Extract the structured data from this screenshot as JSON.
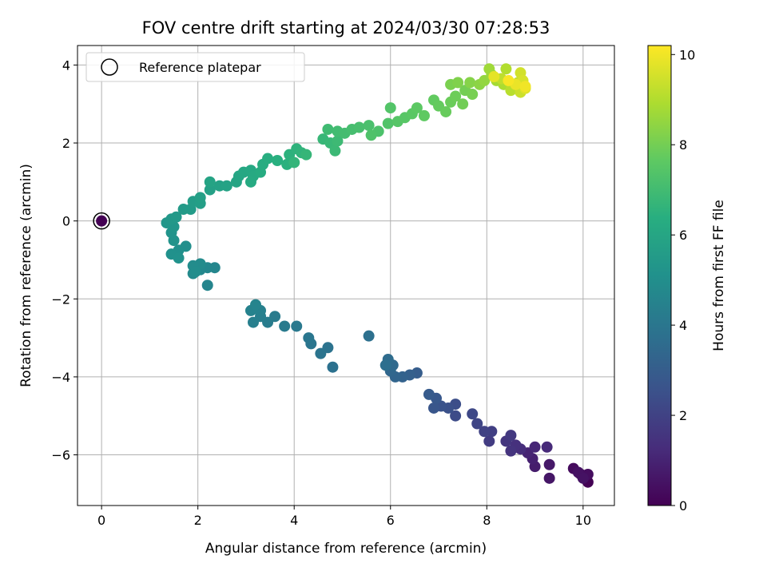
{
  "chart_data": {
    "type": "scatter",
    "title": "FOV centre drift starting at 2024/03/30 07:28:53",
    "xlabel": "Angular distance from reference (arcmin)",
    "ylabel": "Rotation from reference (arcmin)",
    "xlim": [
      -0.5,
      10.65
    ],
    "ylim": [
      -7.3,
      4.5
    ],
    "xticks": [
      0,
      2,
      4,
      6,
      8,
      10
    ],
    "yticks": [
      -6,
      -4,
      -2,
      0,
      2,
      4
    ],
    "grid": true,
    "legend": {
      "placement": "top-left",
      "entries": [
        "Reference platepar"
      ]
    },
    "reference_point": {
      "x": 0,
      "y": 0
    },
    "colorbar": {
      "label": "Hours from first FF file",
      "range": [
        0,
        10.2
      ],
      "ticks": [
        0,
        2,
        4,
        6,
        8,
        10
      ],
      "colormap": "viridis"
    },
    "series": [
      {
        "points": [
          {
            "x": 0,
            "y": 0,
            "c": 0
          },
          {
            "x": 10.1,
            "y": -6.7,
            "c": 0.0
          },
          {
            "x": 10.05,
            "y": -6.55,
            "c": 0.1
          },
          {
            "x": 9.95,
            "y": -6.5,
            "c": 0.2
          },
          {
            "x": 9.8,
            "y": -6.35,
            "c": 0.3
          },
          {
            "x": 10.1,
            "y": -6.5,
            "c": 0.35
          },
          {
            "x": 9.9,
            "y": -6.45,
            "c": 0.45
          },
          {
            "x": 10.0,
            "y": -6.6,
            "c": 0.5
          },
          {
            "x": 9.3,
            "y": -6.6,
            "c": 0.6
          },
          {
            "x": 9.3,
            "y": -6.25,
            "c": 0.7
          },
          {
            "x": 9.0,
            "y": -6.3,
            "c": 0.8
          },
          {
            "x": 8.95,
            "y": -6.1,
            "c": 0.9
          },
          {
            "x": 8.85,
            "y": -5.95,
            "c": 1.0
          },
          {
            "x": 9.0,
            "y": -5.8,
            "c": 1.1
          },
          {
            "x": 9.25,
            "y": -5.8,
            "c": 1.2
          },
          {
            "x": 8.7,
            "y": -5.85,
            "c": 1.3
          },
          {
            "x": 8.6,
            "y": -5.75,
            "c": 1.4
          },
          {
            "x": 8.5,
            "y": -5.9,
            "c": 1.5
          },
          {
            "x": 8.4,
            "y": -5.65,
            "c": 1.6
          },
          {
            "x": 8.5,
            "y": -5.5,
            "c": 1.7
          },
          {
            "x": 8.05,
            "y": -5.65,
            "c": 1.8
          },
          {
            "x": 8.1,
            "y": -5.4,
            "c": 1.9
          },
          {
            "x": 7.95,
            "y": -5.4,
            "c": 2.0
          },
          {
            "x": 7.8,
            "y": -5.2,
            "c": 2.1
          },
          {
            "x": 7.7,
            "y": -4.95,
            "c": 2.2
          },
          {
            "x": 7.35,
            "y": -5.0,
            "c": 2.3
          },
          {
            "x": 7.35,
            "y": -4.7,
            "c": 2.4
          },
          {
            "x": 7.2,
            "y": -4.8,
            "c": 2.5
          },
          {
            "x": 7.05,
            "y": -4.75,
            "c": 2.6
          },
          {
            "x": 6.9,
            "y": -4.8,
            "c": 2.7
          },
          {
            "x": 6.95,
            "y": -4.55,
            "c": 2.8
          },
          {
            "x": 6.8,
            "y": -4.45,
            "c": 2.9
          },
          {
            "x": 6.55,
            "y": -3.9,
            "c": 3.0
          },
          {
            "x": 6.4,
            "y": -3.95,
            "c": 3.1
          },
          {
            "x": 6.25,
            "y": -4.0,
            "c": 3.2
          },
          {
            "x": 6.1,
            "y": -4.0,
            "c": 3.3
          },
          {
            "x": 6.0,
            "y": -3.85,
            "c": 3.4
          },
          {
            "x": 6.05,
            "y": -3.7,
            "c": 3.5
          },
          {
            "x": 5.95,
            "y": -3.55,
            "c": 3.6
          },
          {
            "x": 5.9,
            "y": -3.7,
            "c": 3.7
          },
          {
            "x": 5.55,
            "y": -2.95,
            "c": 3.75
          },
          {
            "x": 4.8,
            "y": -3.75,
            "c": 3.8
          },
          {
            "x": 4.7,
            "y": -3.25,
            "c": 3.85
          },
          {
            "x": 4.55,
            "y": -3.4,
            "c": 3.9
          },
          {
            "x": 4.35,
            "y": -3.15,
            "c": 3.95
          },
          {
            "x": 4.3,
            "y": -3.0,
            "c": 4.0
          },
          {
            "x": 4.05,
            "y": -2.7,
            "c": 4.1
          },
          {
            "x": 3.8,
            "y": -2.7,
            "c": 4.15
          },
          {
            "x": 3.6,
            "y": -2.45,
            "c": 4.2
          },
          {
            "x": 3.45,
            "y": -2.6,
            "c": 4.25
          },
          {
            "x": 3.3,
            "y": -2.45,
            "c": 4.3
          },
          {
            "x": 3.15,
            "y": -2.6,
            "c": 4.35
          },
          {
            "x": 3.3,
            "y": -2.3,
            "c": 4.4
          },
          {
            "x": 3.2,
            "y": -2.25,
            "c": 4.45
          },
          {
            "x": 3.1,
            "y": -2.3,
            "c": 4.5
          },
          {
            "x": 3.2,
            "y": -2.15,
            "c": 4.55
          },
          {
            "x": 2.2,
            "y": -1.65,
            "c": 4.6
          },
          {
            "x": 2.35,
            "y": -1.2,
            "c": 4.65
          },
          {
            "x": 2.2,
            "y": -1.2,
            "c": 4.7
          },
          {
            "x": 2.05,
            "y": -1.25,
            "c": 4.75
          },
          {
            "x": 1.9,
            "y": -1.35,
            "c": 4.8
          },
          {
            "x": 2.05,
            "y": -1.1,
            "c": 4.85
          },
          {
            "x": 1.9,
            "y": -1.15,
            "c": 4.9
          },
          {
            "x": 1.95,
            "y": -1.3,
            "c": 4.95
          },
          {
            "x": 1.75,
            "y": -0.65,
            "c": 5.0
          },
          {
            "x": 1.6,
            "y": -0.75,
            "c": 5.05
          },
          {
            "x": 1.45,
            "y": -0.85,
            "c": 5.1
          },
          {
            "x": 1.6,
            "y": -0.95,
            "c": 5.15
          },
          {
            "x": 1.5,
            "y": -0.5,
            "c": 5.2
          },
          {
            "x": 1.45,
            "y": -0.3,
            "c": 5.25
          },
          {
            "x": 1.5,
            "y": -0.15,
            "c": 5.3
          },
          {
            "x": 1.35,
            "y": -0.05,
            "c": 5.35
          },
          {
            "x": 1.45,
            "y": 0.05,
            "c": 5.4
          },
          {
            "x": 1.55,
            "y": 0.1,
            "c": 5.45
          },
          {
            "x": 1.7,
            "y": 0.3,
            "c": 5.5
          },
          {
            "x": 1.85,
            "y": 0.3,
            "c": 5.55
          },
          {
            "x": 1.9,
            "y": 0.5,
            "c": 5.6
          },
          {
            "x": 2.05,
            "y": 0.45,
            "c": 5.65
          },
          {
            "x": 2.05,
            "y": 0.6,
            "c": 5.7
          },
          {
            "x": 2.25,
            "y": 0.8,
            "c": 5.75
          },
          {
            "x": 2.45,
            "y": 0.9,
            "c": 5.8
          },
          {
            "x": 2.6,
            "y": 0.9,
            "c": 5.85
          },
          {
            "x": 2.25,
            "y": 1.0,
            "c": 5.9
          },
          {
            "x": 2.8,
            "y": 1.0,
            "c": 5.95
          },
          {
            "x": 2.85,
            "y": 1.15,
            "c": 6.0
          },
          {
            "x": 2.95,
            "y": 1.25,
            "c": 6.05
          },
          {
            "x": 3.1,
            "y": 1.3,
            "c": 6.1
          },
          {
            "x": 3.15,
            "y": 1.15,
            "c": 6.15
          },
          {
            "x": 3.1,
            "y": 1.0,
            "c": 6.2
          },
          {
            "x": 3.3,
            "y": 1.25,
            "c": 6.25
          },
          {
            "x": 3.35,
            "y": 1.45,
            "c": 6.3
          },
          {
            "x": 3.45,
            "y": 1.6,
            "c": 6.35
          },
          {
            "x": 3.65,
            "y": 1.55,
            "c": 6.4
          },
          {
            "x": 3.85,
            "y": 1.45,
            "c": 6.45
          },
          {
            "x": 3.9,
            "y": 1.7,
            "c": 6.5
          },
          {
            "x": 4.05,
            "y": 1.85,
            "c": 6.55
          },
          {
            "x": 4.15,
            "y": 1.75,
            "c": 6.6
          },
          {
            "x": 4.0,
            "y": 1.5,
            "c": 6.65
          },
          {
            "x": 4.25,
            "y": 1.7,
            "c": 6.7
          },
          {
            "x": 4.6,
            "y": 2.1,
            "c": 6.75
          },
          {
            "x": 4.75,
            "y": 2.0,
            "c": 6.8
          },
          {
            "x": 4.85,
            "y": 1.8,
            "c": 6.85
          },
          {
            "x": 4.9,
            "y": 2.05,
            "c": 6.9
          },
          {
            "x": 4.7,
            "y": 2.35,
            "c": 6.95
          },
          {
            "x": 4.9,
            "y": 2.3,
            "c": 7.0
          },
          {
            "x": 5.05,
            "y": 2.25,
            "c": 7.05
          },
          {
            "x": 5.2,
            "y": 2.35,
            "c": 7.1
          },
          {
            "x": 5.35,
            "y": 2.4,
            "c": 7.15
          },
          {
            "x": 5.55,
            "y": 2.45,
            "c": 7.2
          },
          {
            "x": 5.75,
            "y": 2.3,
            "c": 7.25
          },
          {
            "x": 5.6,
            "y": 2.2,
            "c": 7.3
          },
          {
            "x": 5.95,
            "y": 2.5,
            "c": 7.35
          },
          {
            "x": 6.0,
            "y": 2.9,
            "c": 7.4
          },
          {
            "x": 6.15,
            "y": 2.55,
            "c": 7.45
          },
          {
            "x": 6.3,
            "y": 2.65,
            "c": 7.5
          },
          {
            "x": 6.45,
            "y": 2.75,
            "c": 7.55
          },
          {
            "x": 6.55,
            "y": 2.9,
            "c": 7.6
          },
          {
            "x": 6.7,
            "y": 2.7,
            "c": 7.65
          },
          {
            "x": 6.9,
            "y": 3.1,
            "c": 7.7
          },
          {
            "x": 7.0,
            "y": 2.95,
            "c": 7.75
          },
          {
            "x": 7.15,
            "y": 2.8,
            "c": 7.8
          },
          {
            "x": 7.25,
            "y": 3.05,
            "c": 7.85
          },
          {
            "x": 7.35,
            "y": 3.2,
            "c": 7.9
          },
          {
            "x": 7.5,
            "y": 3.0,
            "c": 7.95
          },
          {
            "x": 7.55,
            "y": 3.35,
            "c": 8.0
          },
          {
            "x": 7.7,
            "y": 3.25,
            "c": 8.05
          },
          {
            "x": 7.25,
            "y": 3.5,
            "c": 8.1
          },
          {
            "x": 7.4,
            "y": 3.55,
            "c": 8.2
          },
          {
            "x": 7.65,
            "y": 3.55,
            "c": 8.3
          },
          {
            "x": 7.85,
            "y": 3.5,
            "c": 8.4
          },
          {
            "x": 7.95,
            "y": 3.6,
            "c": 8.5
          },
          {
            "x": 8.1,
            "y": 3.75,
            "c": 8.6
          },
          {
            "x": 8.05,
            "y": 3.9,
            "c": 8.7
          },
          {
            "x": 8.2,
            "y": 3.6,
            "c": 8.8
          },
          {
            "x": 8.35,
            "y": 3.5,
            "c": 8.9
          },
          {
            "x": 8.4,
            "y": 3.9,
            "c": 9.0
          },
          {
            "x": 8.5,
            "y": 3.35,
            "c": 9.1
          },
          {
            "x": 8.3,
            "y": 3.65,
            "c": 9.2
          },
          {
            "x": 8.65,
            "y": 3.55,
            "c": 9.3
          },
          {
            "x": 8.7,
            "y": 3.3,
            "c": 9.4
          },
          {
            "x": 8.7,
            "y": 3.8,
            "c": 9.5
          },
          {
            "x": 8.75,
            "y": 3.6,
            "c": 9.6
          },
          {
            "x": 8.8,
            "y": 3.4,
            "c": 9.7
          },
          {
            "x": 8.15,
            "y": 3.7,
            "c": 9.8
          },
          {
            "x": 8.6,
            "y": 3.5,
            "c": 9.9
          },
          {
            "x": 8.8,
            "y": 3.45,
            "c": 10.0
          },
          {
            "x": 8.45,
            "y": 3.6,
            "c": 10.1
          }
        ]
      }
    ]
  }
}
